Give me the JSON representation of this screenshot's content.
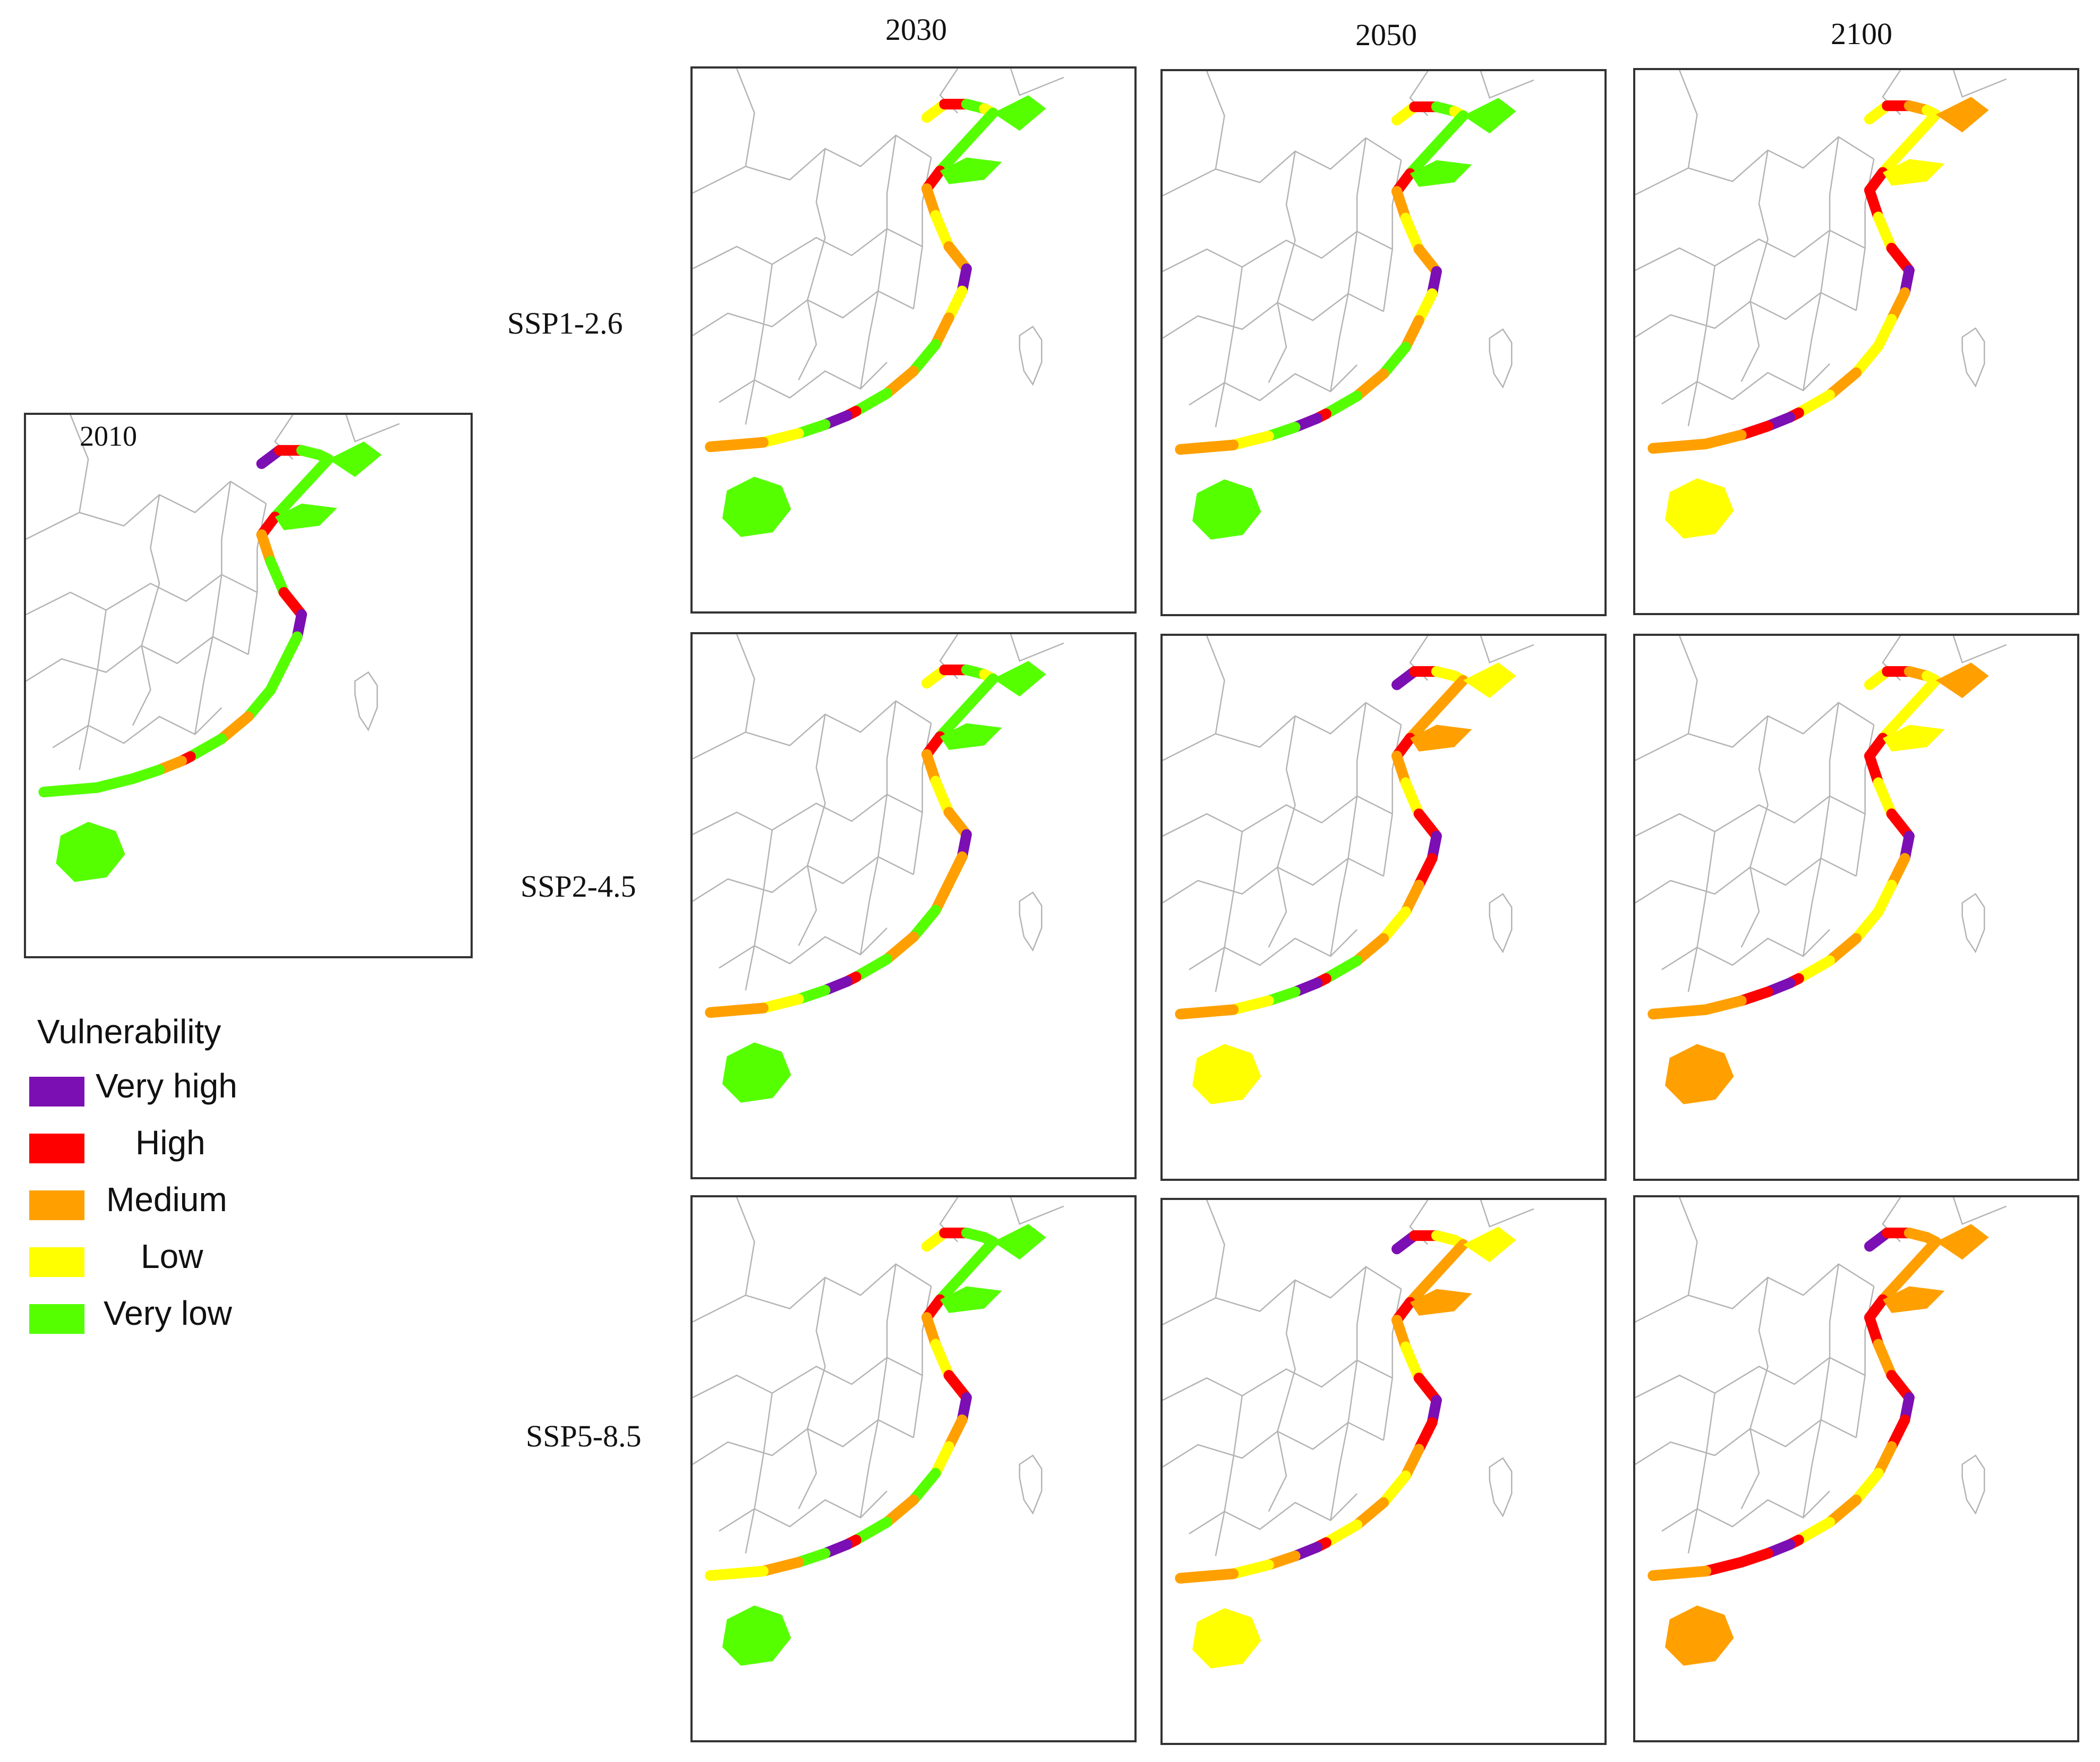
{
  "base_map": {
    "year_label": "2010"
  },
  "columns": [
    "2030",
    "2050",
    "2100"
  ],
  "rows": [
    "SSP1-2.6",
    "SSP2-4.5",
    "SSP5-8.5"
  ],
  "legend": {
    "title": "Vulnerability",
    "items": [
      {
        "label": "Very high",
        "color": "#7b0fb3"
      },
      {
        "label": "High",
        "color": "#ff0000"
      },
      {
        "label": "Medium",
        "color": "#ffa000"
      },
      {
        "label": "Low",
        "color": "#ffff00"
      },
      {
        "label": "Very low",
        "color": "#55ff00"
      }
    ]
  },
  "maps": [
    {
      "id": "2010",
      "coast": [
        "purple",
        "red",
        "green",
        "green",
        "green",
        "red",
        "orange",
        "green",
        "red",
        "purple",
        "green",
        "green",
        "green",
        "orange",
        "green",
        "red",
        "orange",
        "green",
        "green",
        "green",
        "green"
      ]
    },
    {
      "id": "SSP1-2.6-2030",
      "coast": [
        "yellow",
        "red",
        "green",
        "yellow",
        "green",
        "red",
        "orange",
        "yellow",
        "orange",
        "purple",
        "yellow",
        "orange",
        "green",
        "orange",
        "green",
        "red",
        "purple",
        "green",
        "yellow",
        "orange",
        "green"
      ]
    },
    {
      "id": "SSP1-2.6-2050",
      "coast": [
        "yellow",
        "red",
        "green",
        "yellow",
        "green",
        "red",
        "orange",
        "yellow",
        "orange",
        "purple",
        "yellow",
        "orange",
        "green",
        "orange",
        "green",
        "red",
        "purple",
        "green",
        "yellow",
        "orange",
        "green"
      ]
    },
    {
      "id": "SSP1-2.6-2100",
      "coast": [
        "yellow",
        "red",
        "orange",
        "yellow",
        "yellow",
        "red",
        "red",
        "yellow",
        "red",
        "purple",
        "orange",
        "yellow",
        "yellow",
        "orange",
        "yellow",
        "red",
        "purple",
        "red",
        "orange",
        "orange",
        "yellow"
      ]
    },
    {
      "id": "SSP2-4.5-2030",
      "coast": [
        "yellow",
        "red",
        "green",
        "yellow",
        "green",
        "red",
        "orange",
        "yellow",
        "orange",
        "purple",
        "orange",
        "orange",
        "green",
        "orange",
        "green",
        "red",
        "purple",
        "green",
        "yellow",
        "orange",
        "green"
      ]
    },
    {
      "id": "SSP2-4.5-2050",
      "coast": [
        "purple",
        "red",
        "yellow",
        "yellow",
        "orange",
        "red",
        "orange",
        "yellow",
        "red",
        "purple",
        "red",
        "orange",
        "yellow",
        "orange",
        "green",
        "red",
        "purple",
        "green",
        "yellow",
        "orange",
        "yellow"
      ]
    },
    {
      "id": "SSP2-4.5-2100",
      "coast": [
        "yellow",
        "red",
        "orange",
        "yellow",
        "yellow",
        "red",
        "red",
        "yellow",
        "red",
        "purple",
        "orange",
        "yellow",
        "yellow",
        "orange",
        "yellow",
        "red",
        "purple",
        "red",
        "orange",
        "orange",
        "orange"
      ]
    },
    {
      "id": "SSP5-8.5-2030",
      "coast": [
        "yellow",
        "red",
        "green",
        "green",
        "green",
        "red",
        "orange",
        "yellow",
        "red",
        "purple",
        "orange",
        "yellow",
        "green",
        "orange",
        "green",
        "red",
        "purple",
        "green",
        "orange",
        "yellow",
        "green"
      ]
    },
    {
      "id": "SSP5-8.5-2050",
      "coast": [
        "purple",
        "red",
        "yellow",
        "yellow",
        "orange",
        "red",
        "orange",
        "yellow",
        "red",
        "purple",
        "red",
        "orange",
        "yellow",
        "orange",
        "yellow",
        "red",
        "purple",
        "orange",
        "yellow",
        "orange",
        "yellow"
      ]
    },
    {
      "id": "SSP5-8.5-2100",
      "coast": [
        "purple",
        "red",
        "orange",
        "orange",
        "orange",
        "red",
        "red",
        "orange",
        "red",
        "purple",
        "red",
        "orange",
        "yellow",
        "orange",
        "yellow",
        "red",
        "purple",
        "red",
        "red",
        "orange",
        "orange"
      ]
    }
  ]
}
